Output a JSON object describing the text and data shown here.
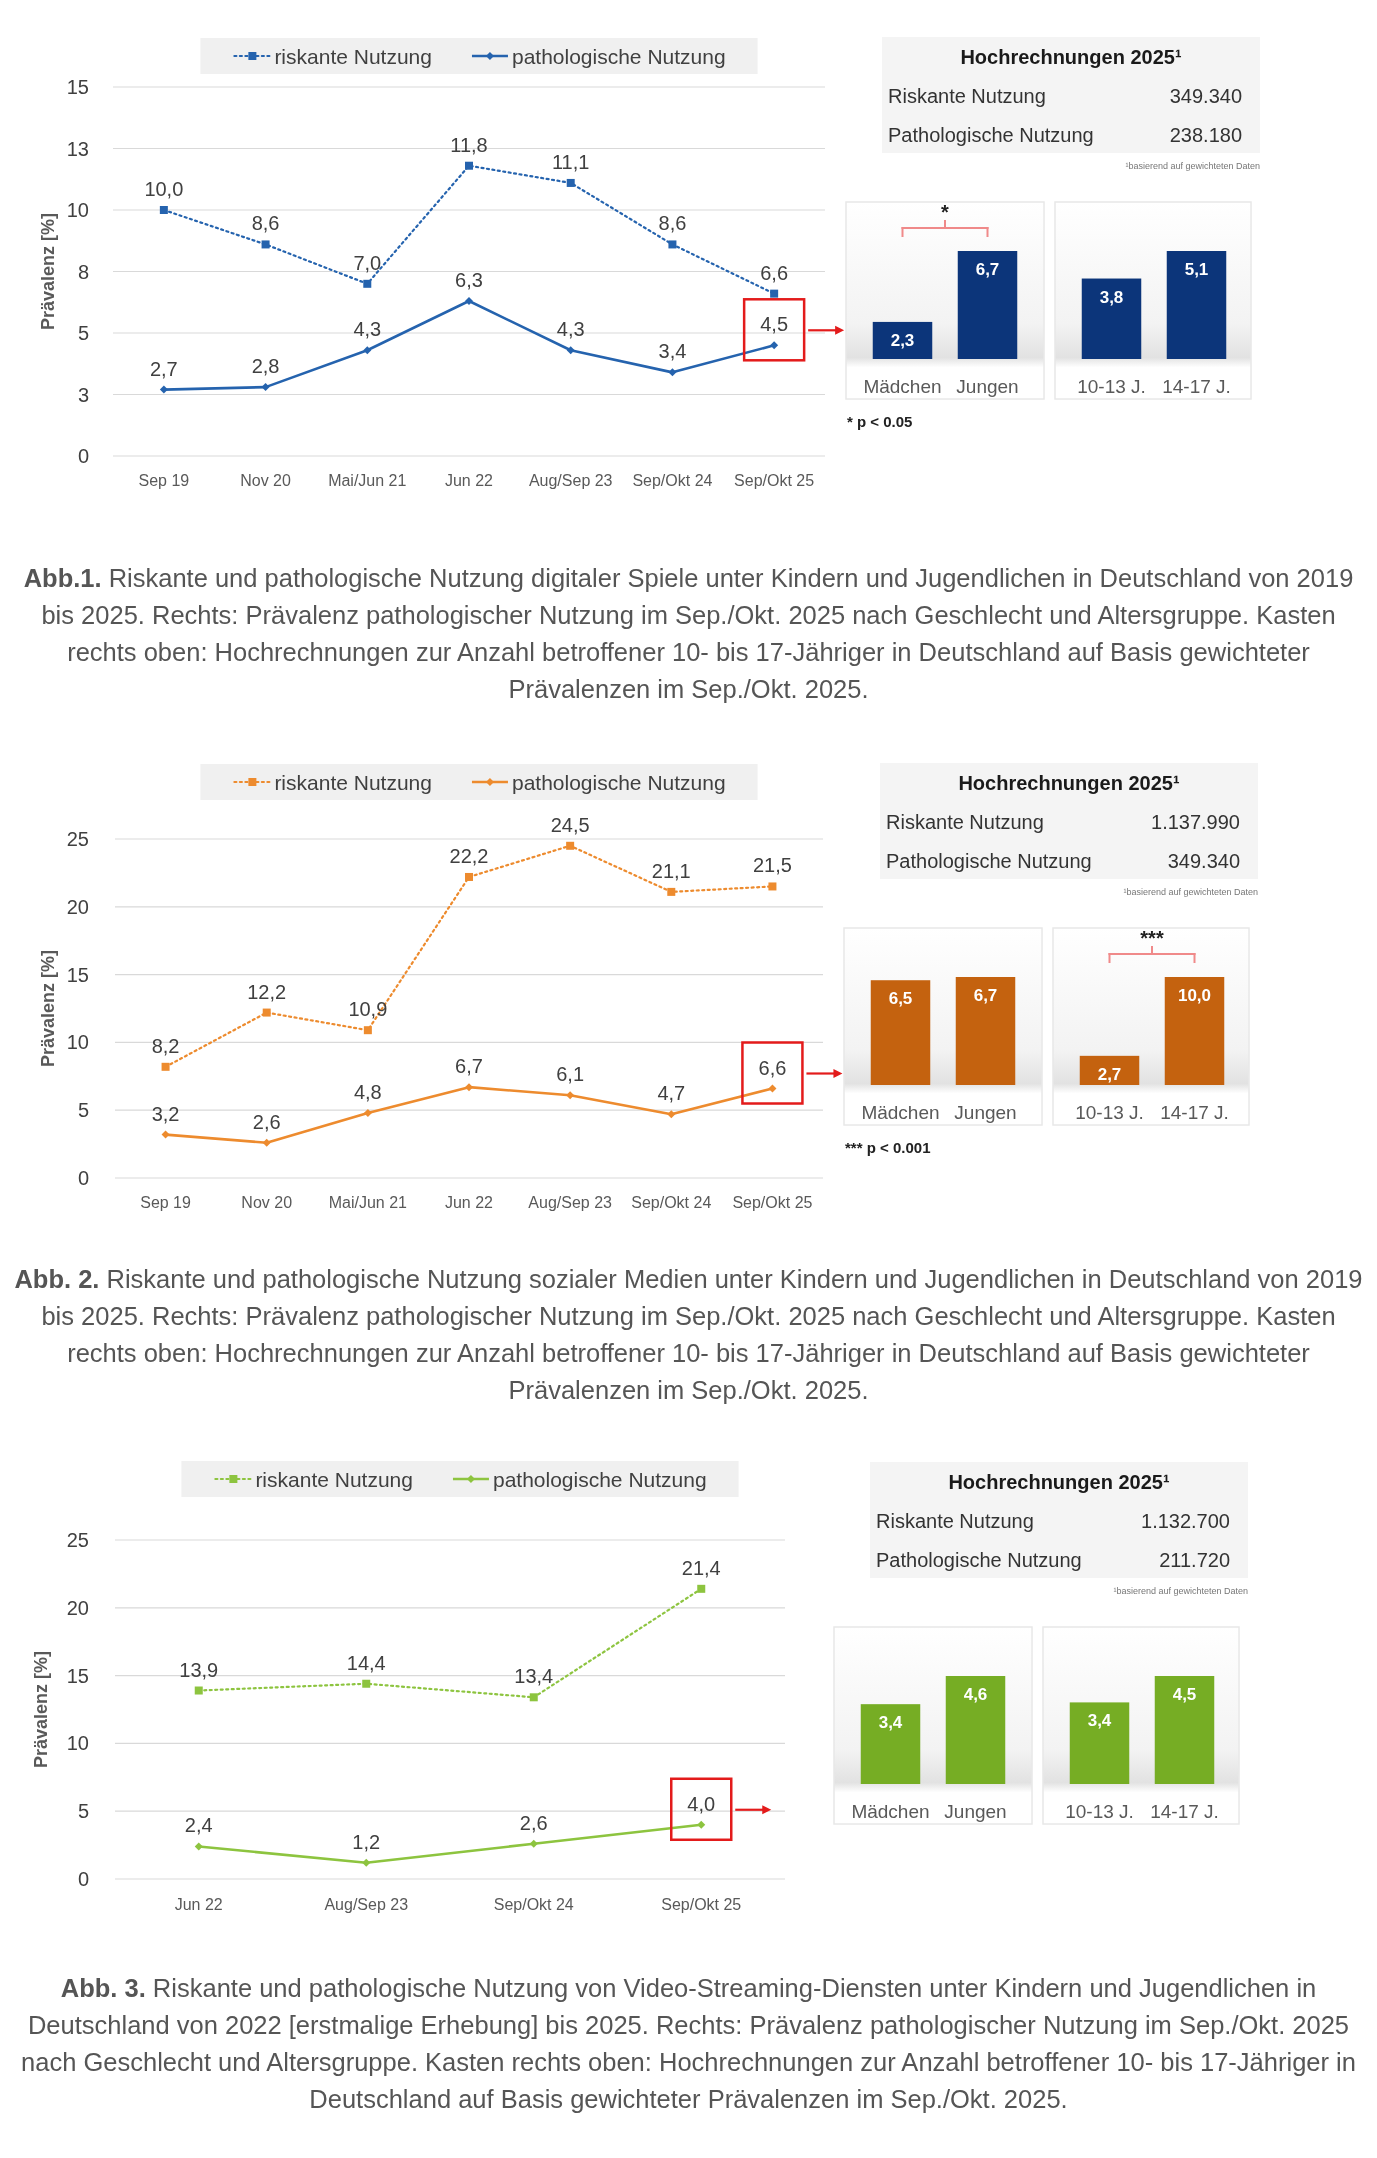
{
  "chart_data": [
    {
      "type": "line",
      "categories": [
        "Sep 19",
        "Nov 20",
        "Mai/Jun 21",
        "Jun 22",
        "Aug/Sep 23",
        "Sep/Okt 24",
        "Sep/Okt 25"
      ],
      "series": [
        {
          "name": "riskante Nutzung",
          "color": "#2563ae",
          "line_style": "dotted",
          "marker": "square",
          "values": [
            10.0,
            8.6,
            7.0,
            11.8,
            11.1,
            8.6,
            6.6
          ],
          "value_labels": [
            "10,0",
            "8,6",
            "7,0",
            "11,8",
            "11,1",
            "8,6",
            "6,6"
          ]
        },
        {
          "name": "pathologische Nutzung",
          "color": "#2563ae",
          "line_style": "solid",
          "marker": "diamond",
          "values": [
            2.7,
            2.8,
            4.3,
            6.3,
            4.3,
            3.4,
            4.5
          ],
          "value_labels": [
            "2,7",
            "2,8",
            "4,3",
            "6,3",
            "4,3",
            "3,4",
            "4,5"
          ]
        }
      ],
      "ylabel": "Prävalenz [%]",
      "ylim": [
        0,
        15
      ],
      "yticks": [
        0,
        {
          "value": 2.5,
          "label": "3"
        },
        5,
        {
          "value": 7.5,
          "label": "8"
        },
        10,
        {
          "value": 12.5,
          "label": "13"
        },
        15
      ],
      "grid": "y",
      "legend": "top",
      "annotations": [
        "Abb.1. Riskante und pathologische Nutzung digitaler Spiele unter Kindern und Jugendlichen in Deutschland von 2019 bis 2025. Rechts: Prävalenz pathologischer Nutzung im Sep./Okt. 2025 nach Geschlecht und Altersgruppe. Kasten rechts oben: Hochrechnungen zur Anzahl betroffener 10- bis 17-Jähriger in Deutschland auf Basis gewichteter Prävalenzen im Sep./Okt. 2025."
      ]
    },
    {
      "type": "other",
      "title": "Hochrechnungen 2025¹",
      "annotations": [
        "Riskante Nutzung",
        "349.340",
        "Pathologische Nutzung",
        "238.180",
        "¹basierend auf gewichteten Daten"
      ]
    },
    {
      "type": "bar",
      "categories": [
        "Mädchen",
        "Jungen"
      ],
      "values": [
        2.3,
        6.7
      ],
      "value_labels": [
        "2,3",
        "6,7"
      ],
      "color": "#0c357a",
      "annotations": [
        "*",
        "* p < 0.05"
      ]
    },
    {
      "type": "bar",
      "categories": [
        "10-13 J.",
        "14-17 J."
      ],
      "values": [
        3.8,
        5.1
      ],
      "value_labels": [
        "3,8",
        "5,1"
      ],
      "color": "#0c357a"
    },
    {
      "type": "line",
      "categories": [
        "Sep 19",
        "Nov 20",
        "Mai/Jun 21",
        "Jun 22",
        "Aug/Sep 23",
        "Sep/Okt 24",
        "Sep/Okt 25"
      ],
      "series": [
        {
          "name": "riskante Nutzung",
          "color": "#ed8b2e",
          "line_style": "dotted",
          "marker": "square",
          "values": [
            8.2,
            12.2,
            10.9,
            22.2,
            24.5,
            21.1,
            21.5
          ],
          "value_labels": [
            "8,2",
            "12,2",
            "10,9",
            "22,2",
            "24,5",
            "21,1",
            "21,5"
          ]
        },
        {
          "name": "pathologische Nutzung",
          "color": "#ed8b2e",
          "line_style": "solid",
          "marker": "diamond",
          "values": [
            3.2,
            2.6,
            4.8,
            6.7,
            6.1,
            4.7,
            6.6
          ],
          "value_labels": [
            "3,2",
            "2,6",
            "4,8",
            "6,7",
            "6,1",
            "4,7",
            "6,6"
          ]
        }
      ],
      "ylabel": "Prävalenz [%]",
      "ylim": [
        0,
        25
      ],
      "yticks": [
        0,
        5,
        10,
        15,
        20,
        25
      ],
      "grid": "y",
      "legend": "top",
      "annotations": [
        "Abb. 2. Riskante und pathologische Nutzung sozialer Medien unter Kindern und Jugendlichen in Deutschland von 2019 bis 2025. Rechts: Prävalenz pathologischer Nutzung im Sep./Okt. 2025 nach Geschlecht und Altersgruppe. Kasten rechts oben: Hochrechnungen zur Anzahl betroffener 10- bis 17-Jähriger in Deutschland auf Basis gewichteter Prävalenzen im Sep./Okt. 2025."
      ]
    },
    {
      "type": "other",
      "title": "Hochrechnungen 2025¹",
      "annotations": [
        "Riskante Nutzung",
        "1.137.990",
        "Pathologische Nutzung",
        "349.340",
        "¹basierend auf gewichteten Daten"
      ]
    },
    {
      "type": "bar",
      "categories": [
        "Mädchen",
        "Jungen"
      ],
      "values": [
        6.5,
        6.7
      ],
      "value_labels": [
        "6,5",
        "6,7"
      ],
      "color": "#c4620f"
    },
    {
      "type": "bar",
      "categories": [
        "10-13 J.",
        "14-17 J."
      ],
      "values": [
        2.7,
        10.0
      ],
      "value_labels": [
        "2,7",
        "10,0"
      ],
      "color": "#c4620f",
      "annotations": [
        "***",
        "*** p < 0.001"
      ]
    },
    {
      "type": "line",
      "categories": [
        "Jun 22",
        "Aug/Sep 23",
        "Sep/Okt 24",
        "Sep/Okt 25"
      ],
      "series": [
        {
          "name": "riskante Nutzung",
          "color": "#8dc43f",
          "line_style": "dotted",
          "marker": "square",
          "values": [
            13.9,
            14.4,
            13.4,
            21.4
          ],
          "value_labels": [
            "13,9",
            "14,4",
            "13,4",
            "21,4"
          ]
        },
        {
          "name": "pathologische Nutzung",
          "color": "#8dc43f",
          "line_style": "solid",
          "marker": "diamond",
          "values": [
            2.4,
            1.2,
            2.6,
            4.0
          ],
          "value_labels": [
            "2,4",
            "1,2",
            "2,6",
            "4,0"
          ]
        }
      ],
      "ylabel": "Prävalenz [%]",
      "ylim": [
        0,
        25
      ],
      "yticks": [
        0,
        5,
        10,
        15,
        20,
        25
      ],
      "grid": "y",
      "legend": "top",
      "annotations": [
        "Abb. 3. Riskante und pathologische Nutzung von Video-Streaming-Diensten unter Kindern und Jugendlichen in Deutschland von 2022 [erstmalige Erhebung] bis 2025. Rechts: Prävalenz pathologischer Nutzung im Sep./Okt. 2025 nach Geschlecht und Altersgruppe. Kasten rechts oben: Hochrechnungen zur Anzahl betroffener 10- bis 17-Jähriger in Deutschland auf Basis gewichteter Prävalenzen im Sep./Okt. 2025."
      ]
    },
    {
      "type": "other",
      "title": "Hochrechnungen 2025¹",
      "annotations": [
        "Riskante Nutzung",
        "1.132.700",
        "Pathologische Nutzung",
        "211.720",
        "¹basierend auf gewichteten Daten"
      ]
    },
    {
      "type": "bar",
      "categories": [
        "Mädchen",
        "Jungen"
      ],
      "values": [
        3.4,
        4.6
      ],
      "value_labels": [
        "3,4",
        "4,6"
      ],
      "color": "#76ad24"
    },
    {
      "type": "bar",
      "categories": [
        "10-13 J.",
        "14-17 J."
      ],
      "values": [
        3.4,
        4.5
      ],
      "value_labels": [
        "3,4",
        "4,5"
      ],
      "color": "#76ad24"
    }
  ]
}
